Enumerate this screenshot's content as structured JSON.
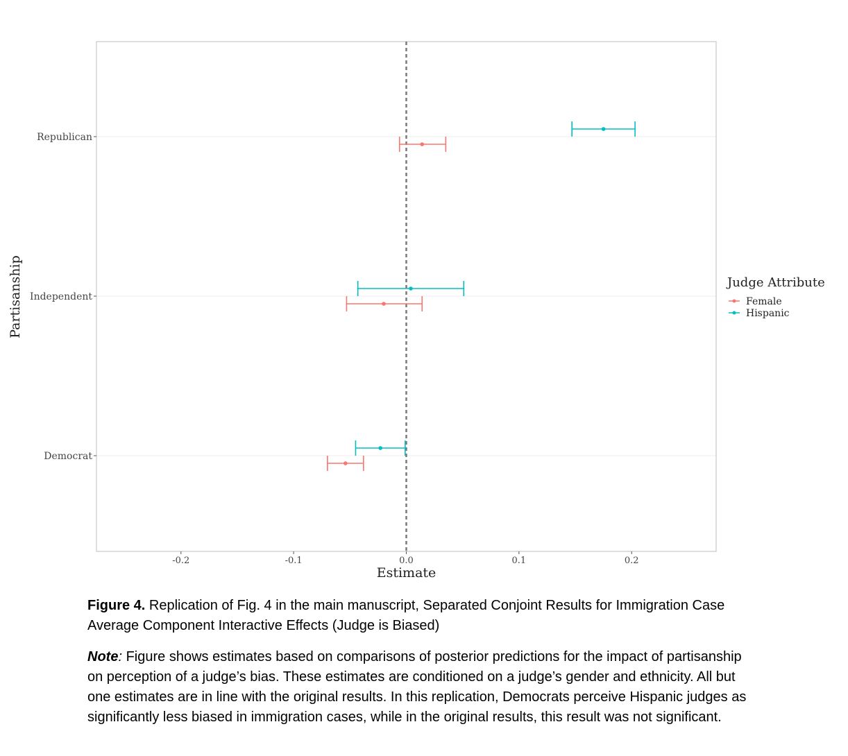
{
  "chart_data": {
    "type": "scatter",
    "xlabel": "Estimate",
    "ylabel": "Partisanship",
    "xlim": [
      -0.275,
      0.275
    ],
    "x_ticks": [
      -0.2,
      -0.1,
      0.0,
      0.1,
      0.2
    ],
    "x_tick_labels": [
      "-0.2",
      "-0.1",
      "0.0",
      "0.1",
      "0.2"
    ],
    "categories": [
      "Republican",
      "Independent",
      "Democrat"
    ],
    "reference_line": 0,
    "grid": true,
    "legend": {
      "title": "Judge Attribute",
      "position": "right"
    },
    "series": [
      {
        "name": "Female",
        "color": "#F8766D",
        "points": [
          {
            "category": "Republican",
            "estimate": 0.014,
            "lower": -0.006,
            "upper": 0.035
          },
          {
            "category": "Independent",
            "estimate": -0.02,
            "lower": -0.053,
            "upper": 0.014
          },
          {
            "category": "Democrat",
            "estimate": -0.054,
            "lower": -0.07,
            "upper": -0.038
          }
        ]
      },
      {
        "name": "Hispanic",
        "color": "#00BFC4",
        "points": [
          {
            "category": "Republican",
            "estimate": 0.175,
            "lower": 0.147,
            "upper": 0.203
          },
          {
            "category": "Independent",
            "estimate": 0.004,
            "lower": -0.043,
            "upper": 0.051
          },
          {
            "category": "Democrat",
            "estimate": -0.023,
            "lower": -0.045,
            "upper": -0.001
          }
        ]
      }
    ]
  },
  "caption": {
    "label": "Figure 4.",
    "text": " Replication of Fig. 4 in the main manuscript, Separated Conjoint Results for Immigration Case Average Component Interactive Effects (Judge is Biased)"
  },
  "note": {
    "label": "Note",
    "colon": ":",
    "text": " Figure shows estimates based on comparisons of posterior predictions for the impact of partisanship on perception of a judge’s bias. These estimates are conditioned on a judge’s gender and ethnicity. All but one estimates are in line with the original results. In this replication, Democrats perceive Hispanic judges as significantly less biased in immigration cases, while in the original results, this result was not significant."
  }
}
